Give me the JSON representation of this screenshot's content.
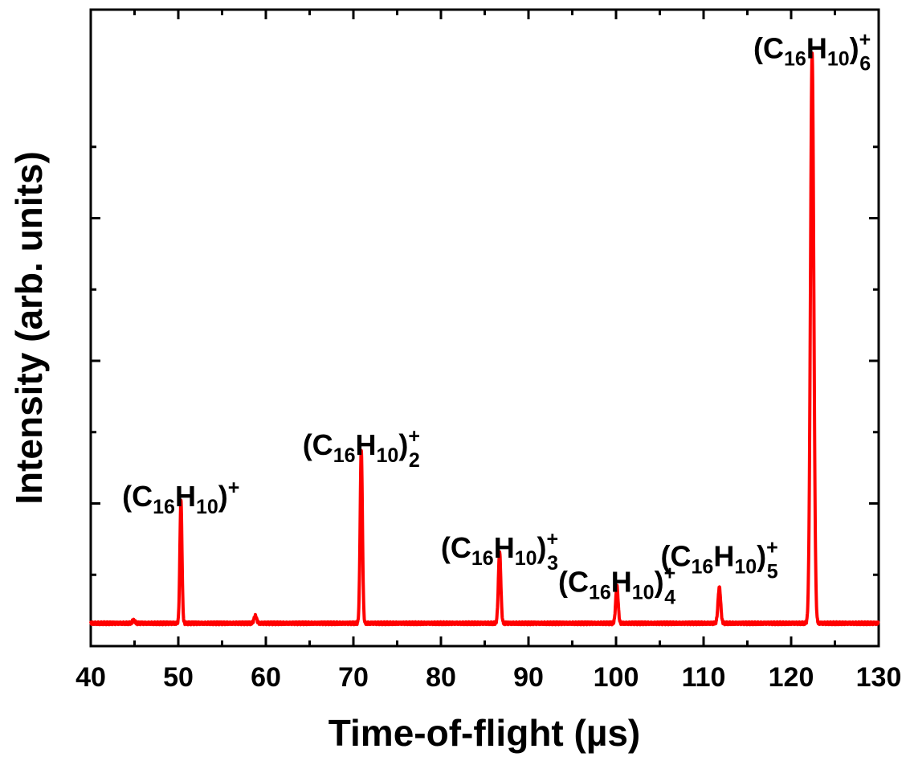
{
  "chart_data": {
    "type": "line",
    "xlabel": "Time-of-flight (µs)",
    "ylabel": "Intensity (arb. units)",
    "xlim": [
      40,
      130
    ],
    "ylim": [
      0,
      1.0
    ],
    "x_ticks": [
      40,
      50,
      60,
      70,
      80,
      90,
      100,
      110,
      120,
      130
    ],
    "y_tick_labels": "none",
    "grid": false,
    "legend": "none",
    "line_color": "#ff0000",
    "baseline": 0.04,
    "peaks": [
      {
        "x": 44.9,
        "height": 0.005,
        "width": 0.15
      },
      {
        "x": 50.3,
        "height": 0.215,
        "width": 0.12
      },
      {
        "x": 58.8,
        "height": 0.013,
        "width": 0.15
      },
      {
        "x": 70.9,
        "height": 0.305,
        "width": 0.13
      },
      {
        "x": 86.7,
        "height": 0.125,
        "width": 0.14
      },
      {
        "x": 100.1,
        "height": 0.065,
        "width": 0.14
      },
      {
        "x": 111.8,
        "height": 0.063,
        "width": 0.15
      },
      {
        "x": 122.4,
        "height": 1.0,
        "width": 0.19
      }
    ],
    "annotations": [
      {
        "base": "(C",
        "n1": "16",
        "mid": "H",
        "n2": "10",
        "close": ")",
        "charge": "+",
        "multiplicity": "",
        "x": 50.3,
        "y": 0.245
      },
      {
        "base": "(C",
        "n1": "16",
        "mid": "H",
        "n2": "10",
        "close": ")",
        "charge": "+",
        "multiplicity": "2",
        "x": 70.9,
        "y": 0.335
      },
      {
        "base": "(C",
        "n1": "16",
        "mid": "H",
        "n2": "10",
        "close": ")",
        "charge": "+",
        "multiplicity": "3",
        "x": 86.7,
        "y": 0.155
      },
      {
        "base": "(C",
        "n1": "16",
        "mid": "H",
        "n2": "10",
        "close": ")",
        "charge": "+",
        "multiplicity": "4",
        "x": 100.1,
        "y": 0.095
      },
      {
        "base": "(C",
        "n1": "16",
        "mid": "H",
        "n2": "10",
        "close": ")",
        "charge": "+",
        "multiplicity": "5",
        "x": 111.8,
        "y": 0.14
      },
      {
        "base": "(C",
        "n1": "16",
        "mid": "H",
        "n2": "10",
        "close": ")",
        "charge": "+",
        "multiplicity": "6",
        "x": 122.4,
        "y": 1.03
      }
    ]
  }
}
